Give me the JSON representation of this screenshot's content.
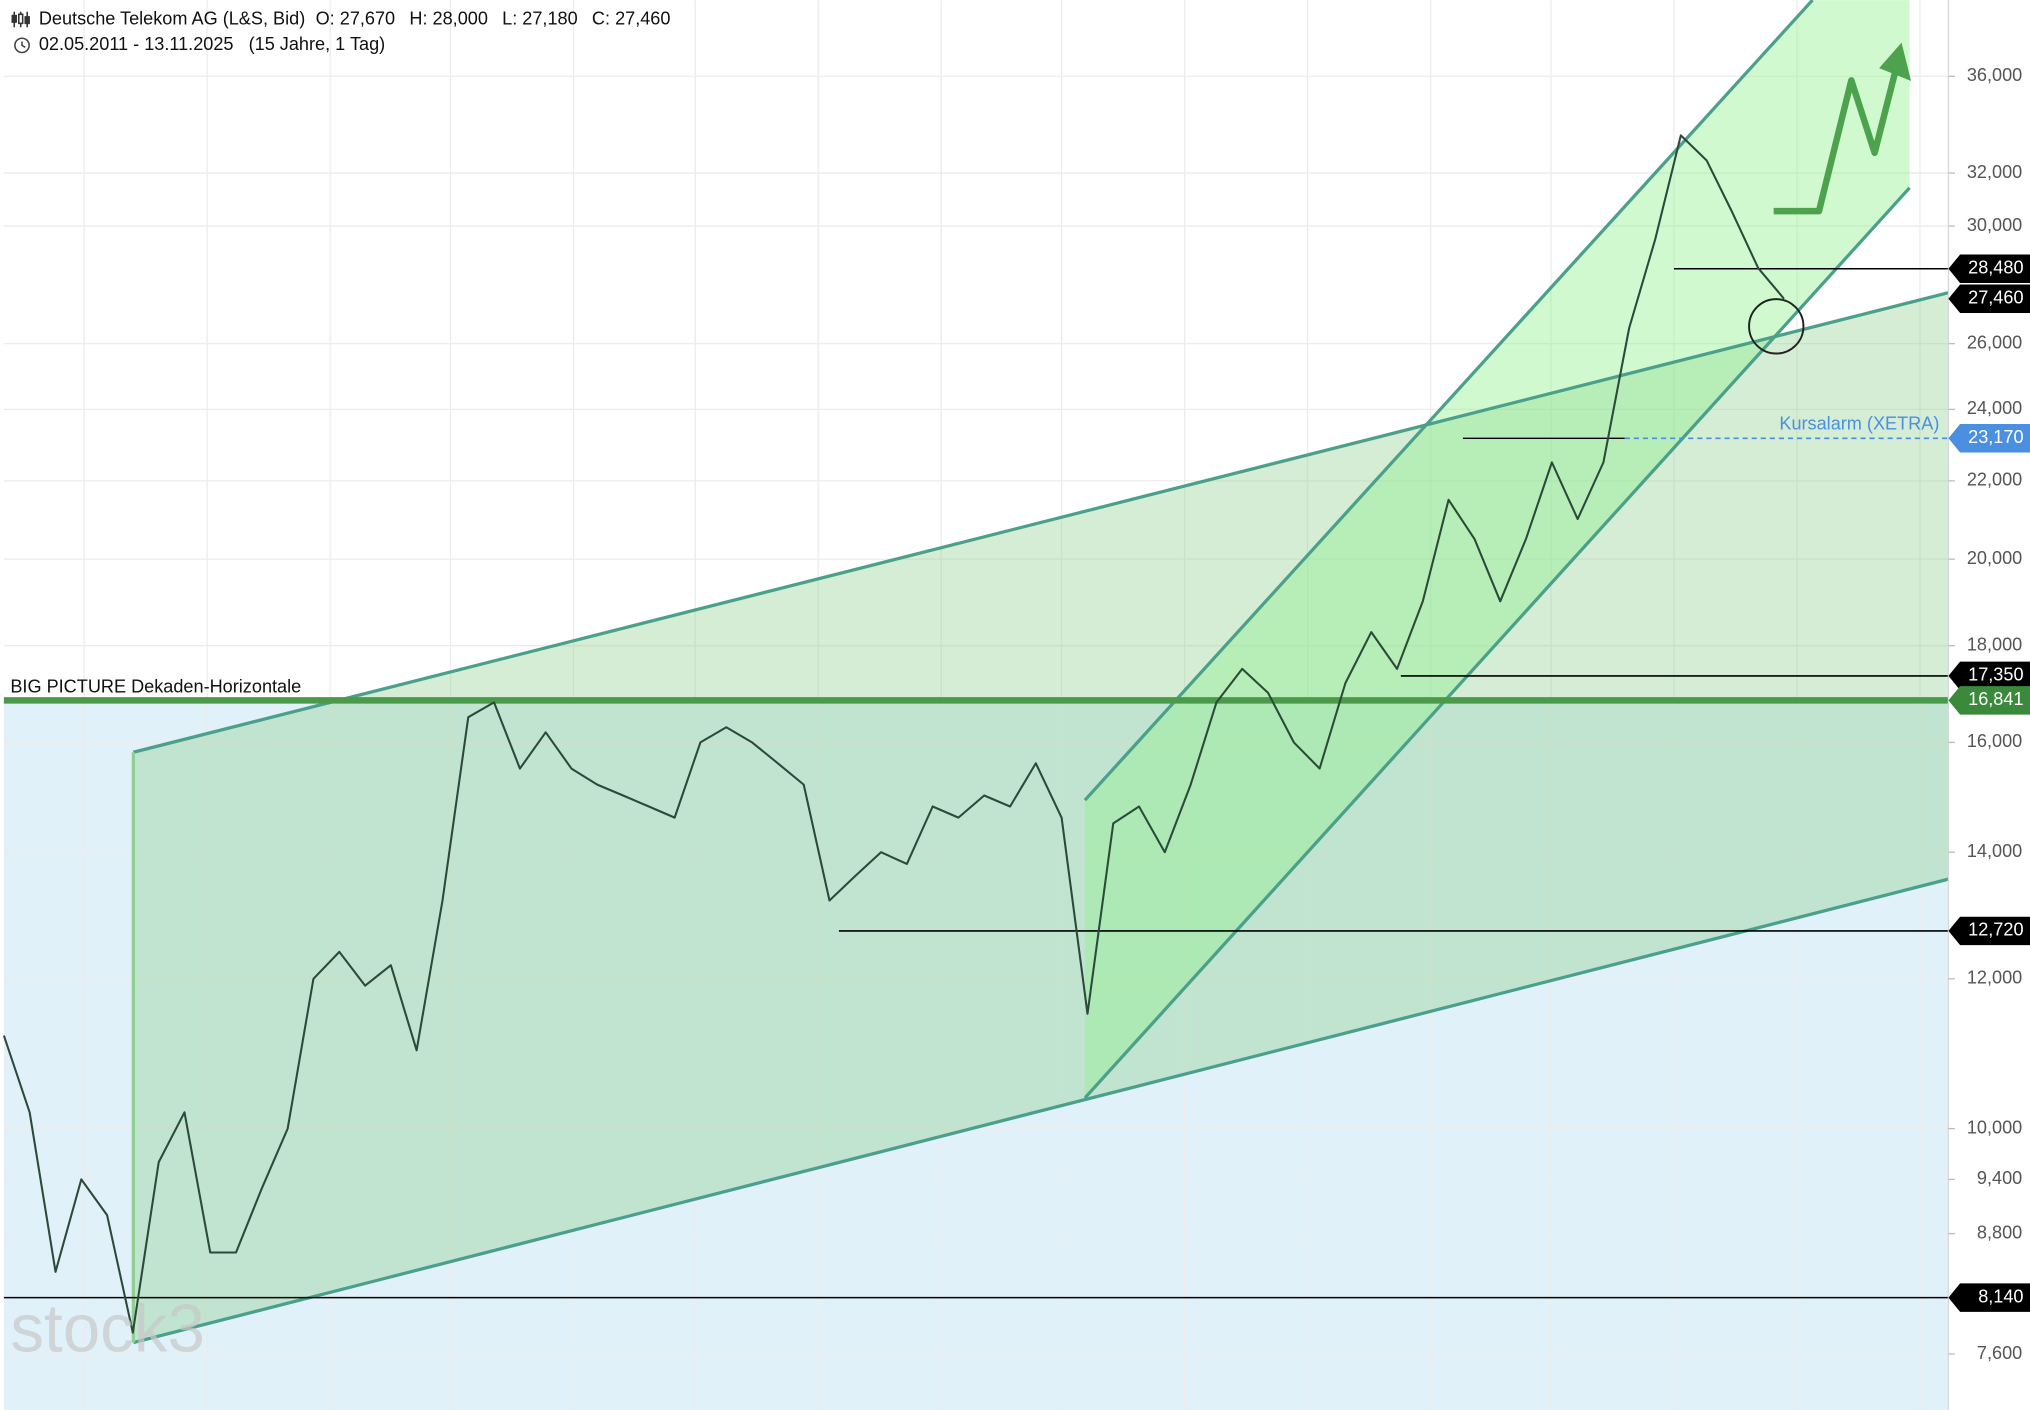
{
  "chart_data": {
    "type": "line",
    "title": "Deutsche Telekom AG (L&S, Bid)",
    "ohlc": [
      "O: 27,670",
      "H: 28,000",
      "L: 27,180",
      "C: 27,460"
    ],
    "subtitle": "02.05.2011 - 13.11.2025   (15 Jahre, 1 Tag)",
    "log_scale": true,
    "grid": true,
    "color": "#2c4a3a",
    "ylim": [
      7100,
      39500
    ],
    "yticks": [
      {
        "value": 7600,
        "label": "7,600"
      },
      {
        "value": 8800,
        "label": "8,800"
      },
      {
        "value": 9400,
        "label": "9,400"
      },
      {
        "value": 10000,
        "label": "10,000"
      },
      {
        "value": 12000,
        "label": "12,000"
      },
      {
        "value": 14000,
        "label": "14,000"
      },
      {
        "value": 16000,
        "label": "16,000"
      },
      {
        "value": 18000,
        "label": "18,000"
      },
      {
        "value": 20000,
        "label": "20,000"
      },
      {
        "value": 22000,
        "label": "22,000"
      },
      {
        "value": 24000,
        "label": "24,000"
      },
      {
        "value": 26000,
        "label": "26,000"
      },
      {
        "value": 30000,
        "label": "30,000"
      },
      {
        "value": 32000,
        "label": "32,000"
      },
      {
        "value": 36000,
        "label": "36,000"
      }
    ],
    "values": [
      11200,
      10200,
      8400,
      9400,
      9000,
      7800,
      9600,
      10200,
      8600,
      8600,
      9300,
      10000,
      12000,
      12400,
      11900,
      12200,
      11000,
      13200,
      16500,
      16800,
      15500,
      16200,
      15500,
      15200,
      15000,
      14800,
      14600,
      16000,
      16300,
      16000,
      15600,
      15200,
      13200,
      13600,
      14000,
      13800,
      14800,
      14600,
      15000,
      14800,
      15600,
      14600,
      11500,
      14500,
      14800,
      14000,
      15200,
      16800,
      17500,
      17000,
      16000,
      15500,
      17200,
      18300,
      17500,
      19000,
      21500,
      20500,
      19000,
      20500,
      22500,
      21000,
      22500,
      26500,
      29500,
      33500,
      32500,
      30500,
      28500,
      27460
    ],
    "annotations": [
      {
        "value": 28480,
        "label": "28,480",
        "color": "#000000"
      },
      {
        "value": 27460,
        "label": "27,460",
        "color": "#000000"
      },
      {
        "value": 23170,
        "label": "23,170",
        "color": "#4a8fe0"
      },
      {
        "value": 17350,
        "label": "17,350",
        "color": "#000000"
      },
      {
        "value": 16841,
        "label": "16,841",
        "color": "#3b8a3b"
      },
      {
        "value": 12720,
        "label": "12,720",
        "color": "#000000"
      },
      {
        "value": 8140,
        "label": "8,140",
        "color": "#000000"
      }
    ],
    "alarm_text": "Kursalarm (XETRA)",
    "horizontal_text": "BIG PICTURE Dekaden-Horizontale",
    "watermark": "stock3"
  }
}
